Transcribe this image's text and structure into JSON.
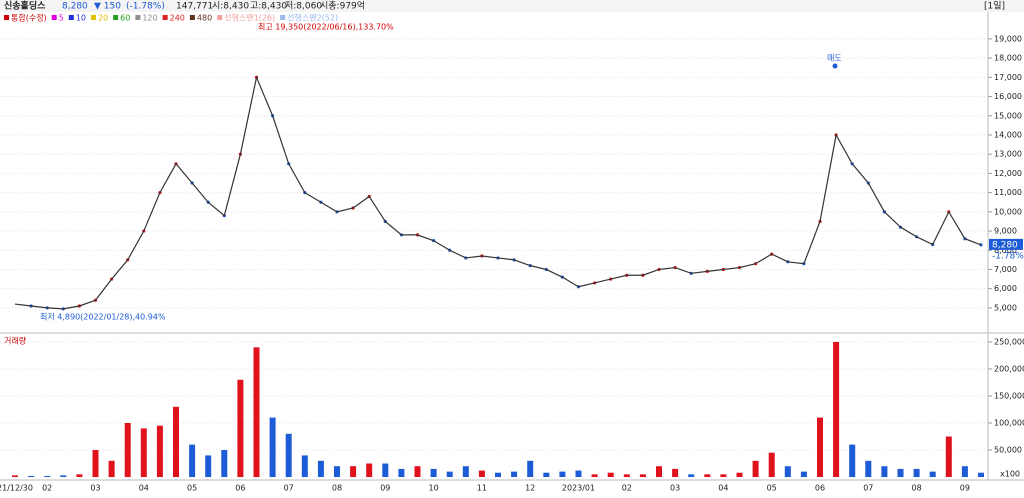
{
  "header": {
    "name": "신송홀딩스",
    "price": "8,280",
    "change": "▼ 150",
    "change_pct": "(-1.78%)",
    "volume": "147,771",
    "open": "시:8,430",
    "high": "고:8,430",
    "low": "저:8,060",
    "market_cap": "시총:979억",
    "period": "[1일]"
  },
  "legend": [
    {
      "label": "통합(수정)",
      "color": "#d00000"
    },
    {
      "label": "5",
      "color": "#e000e0"
    },
    {
      "label": "10",
      "color": "#2030e0"
    },
    {
      "label": "20",
      "color": "#e0c000"
    },
    {
      "label": "60",
      "color": "#20a020"
    },
    {
      "label": "120",
      "color": "#909090"
    },
    {
      "label": "240",
      "color": "#e02020"
    },
    {
      "label": "480",
      "color": "#603020"
    },
    {
      "label": "선행스팬1(26)",
      "color": "#f0a0a0"
    },
    {
      "label": "선행스팬2(52)",
      "color": "#9ab8f0"
    }
  ],
  "chart_data": [
    {
      "type": "line",
      "color": "#333333",
      "up_color": "#e0121b",
      "down_color": "#1e5bd6",
      "values": [
        5200,
        5100,
        5000,
        4950,
        5100,
        5400,
        6500,
        7500,
        9000,
        11000,
        12500,
        11500,
        10500,
        9800,
        13000,
        17000,
        15000,
        12500,
        11000,
        10500,
        10000,
        10200,
        10800,
        9500,
        8800,
        8800,
        8500,
        8000,
        7600,
        7700,
        7600,
        7500,
        7200,
        7000,
        6600,
        6100,
        6300,
        6500,
        6700,
        6700,
        7000,
        7100,
        6800,
        6900,
        7000,
        7100,
        7300,
        7800,
        7400,
        7300,
        9500,
        14000,
        12500,
        11500,
        10000,
        9200,
        8700,
        8300,
        10000,
        8600,
        8280
      ],
      "ylim": [
        3850,
        20400
      ],
      "yticks": [
        {
          "value": 19000,
          "label": "19,000"
        },
        {
          "value": 18000,
          "label": "18,000"
        },
        {
          "value": 17000,
          "label": "17,000"
        },
        {
          "value": 16000,
          "label": "16,000"
        },
        {
          "value": 15000,
          "label": "15,000"
        },
        {
          "value": 14000,
          "label": "14,000"
        },
        {
          "value": 13000,
          "label": "13,000"
        },
        {
          "value": 12000,
          "label": "12,000"
        },
        {
          "value": 11000,
          "label": "11,000"
        },
        {
          "value": 10000,
          "label": "10,000"
        },
        {
          "value": 9000,
          "label": "9,000"
        },
        {
          "value": 8000,
          "label": "8,000"
        },
        {
          "value": 7000,
          "label": "7,000"
        },
        {
          "value": 6000,
          "label": "6,000"
        },
        {
          "value": 5000,
          "label": "5,000"
        }
      ],
      "grid": true,
      "annotations": [
        "최고 19,350(2022/06/16),133.70%",
        "최저 4,890(2022/01/28),40.94%",
        "매도"
      ],
      "last_price_label": "8,280",
      "last_change_label": "-1.78%"
    },
    {
      "type": "bar",
      "title": "거래량",
      "categories": [
        "21/12/30",
        null,
        "02",
        null,
        null,
        "03",
        null,
        null,
        "04",
        null,
        null,
        "05",
        null,
        null,
        "06",
        null,
        null,
        "07",
        null,
        null,
        "08",
        null,
        null,
        "09",
        null,
        null,
        "10",
        null,
        null,
        "11",
        null,
        null,
        "12",
        null,
        null,
        "2023/01",
        null,
        null,
        "02",
        null,
        null,
        "03",
        null,
        null,
        "04",
        null,
        null,
        "05",
        null,
        null,
        "06",
        null,
        null,
        "07",
        null,
        null,
        "08",
        null,
        null,
        "09",
        null
      ],
      "values": [
        3000,
        2000,
        2000,
        3000,
        5000,
        50000,
        30000,
        100000,
        90000,
        95000,
        130000,
        60000,
        40000,
        50000,
        180000,
        240000,
        110000,
        80000,
        40000,
        30000,
        20000,
        20000,
        25000,
        25000,
        15000,
        20000,
        15000,
        10000,
        20000,
        12000,
        8000,
        10000,
        30000,
        8000,
        10000,
        12000,
        5000,
        8000,
        5000,
        5000,
        20000,
        15000,
        5000,
        5000,
        5000,
        8000,
        30000,
        45000,
        20000,
        10000,
        110000,
        250000,
        60000,
        30000,
        20000,
        15000,
        15000,
        10000,
        75000,
        20000,
        8000
      ],
      "ylim": [
        -5500,
        261000
      ],
      "yticks": [
        {
          "value": 250000,
          "label": "250,000"
        },
        {
          "value": 200000,
          "label": "200,000"
        },
        {
          "value": 150000,
          "label": "150,000"
        },
        {
          "value": 100000,
          "label": "100,000"
        },
        {
          "value": 50000,
          "label": "50,000"
        }
      ],
      "unit_note": "x100"
    }
  ]
}
